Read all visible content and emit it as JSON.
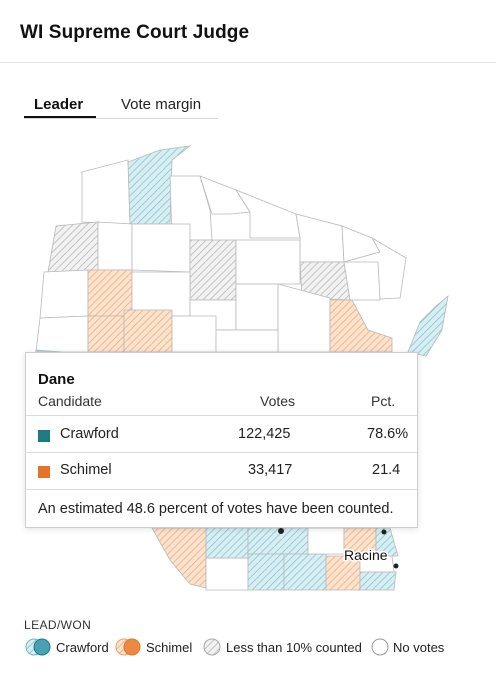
{
  "header": {
    "title": "WI Supreme Court Judge"
  },
  "tabs": [
    {
      "label": "Leader",
      "active": true
    },
    {
      "label": "Vote margin",
      "active": false
    }
  ],
  "map": {
    "place_labels": [
      "Racine"
    ]
  },
  "tooltip": {
    "county": "Dane",
    "columns": {
      "candidate": "Candidate",
      "votes": "Votes",
      "pct": "Pct."
    },
    "rows": [
      {
        "candidate": "Crawford",
        "votes": "122,425",
        "pct": "78.6%",
        "color": "#1f7a87"
      },
      {
        "candidate": "Schimel",
        "votes": "33,417",
        "pct": "21.4",
        "color": "#e3742a"
      }
    ],
    "note": "An estimated 48.6 percent of votes have been counted."
  },
  "legend": {
    "title": "LEAD/WON",
    "items": [
      {
        "label": "Crawford",
        "icon": "crawford-swatch-icon"
      },
      {
        "label": "Schimel",
        "icon": "schimel-swatch-icon"
      },
      {
        "label": "Less than 10% counted",
        "icon": "hatched-circle-icon"
      },
      {
        "label": "No votes",
        "icon": "empty-circle-icon"
      }
    ]
  },
  "colors": {
    "crawford": "#1f7a87",
    "crawford_light": "#a9d6df",
    "schimel": "#e3742a",
    "schimel_light": "#f4c29a",
    "less_counted": "#bdbdbd"
  }
}
